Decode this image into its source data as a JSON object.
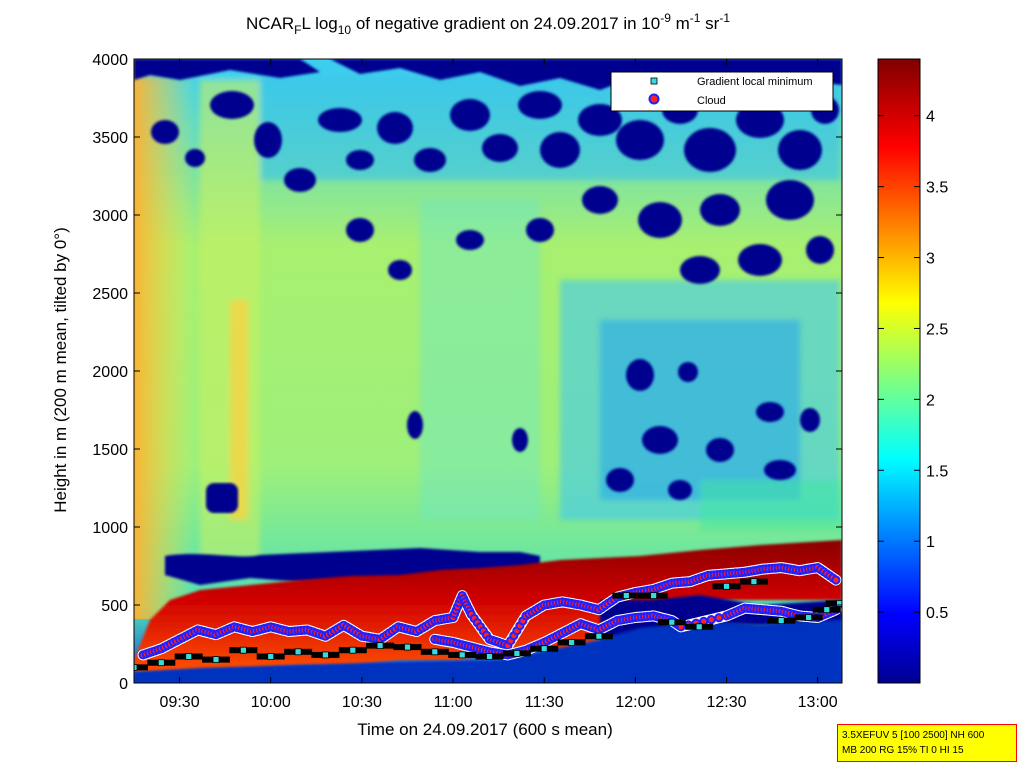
{
  "chart_data": {
    "type": "heatmap",
    "title": {
      "prefix": "NCAR",
      "prefix_sub": "F",
      "mid": "L log",
      "mid_sub": "10",
      "rest": " of negative gradient on 24.09.2017 in 10",
      "exp1": "-9",
      "unit_m": " m",
      "exp2": "-1",
      "unit_sr": " sr",
      "exp3": "-1"
    },
    "xlabel": "Time on 24.09.2017 (600 s mean)",
    "ylabel": "Height in m (200 m mean, tilted by 0°)",
    "x_range": [
      "09:15",
      "13:08"
    ],
    "x_ticks": [
      "09:30",
      "10:00",
      "10:30",
      "11:00",
      "11:30",
      "12:00",
      "12:30",
      "13:00"
    ],
    "y_range": [
      0,
      4000
    ],
    "y_ticks": [
      0,
      500,
      1000,
      1500,
      2000,
      2500,
      3000,
      3500,
      4000
    ],
    "colorbar": {
      "range": [
        0,
        4.4
      ],
      "ticks": [
        "0.5",
        "1",
        "1.5",
        "2",
        "2.5",
        "3",
        "3.5",
        "4"
      ],
      "colormap": "jet"
    },
    "legend": {
      "position": "top-right",
      "entries": [
        {
          "label": "Gradient local minimum",
          "marker": "square",
          "color": "#33dddd"
        },
        {
          "label": "Cloud",
          "marker": "circle",
          "color": "#ff2020",
          "edge": "#2020ff"
        }
      ]
    },
    "cloud_series": [
      [
        9.3,
        180
      ],
      [
        9.4,
        220
      ],
      [
        9.5,
        280
      ],
      [
        9.6,
        340
      ],
      [
        9.7,
        310
      ],
      [
        9.8,
        360
      ],
      [
        9.9,
        330
      ],
      [
        10.0,
        360
      ],
      [
        10.1,
        330
      ],
      [
        10.2,
        340
      ],
      [
        10.3,
        300
      ],
      [
        10.4,
        370
      ],
      [
        10.5,
        300
      ],
      [
        10.6,
        280
      ],
      [
        10.7,
        360
      ],
      [
        10.8,
        330
      ],
      [
        10.9,
        400
      ],
      [
        11.0,
        420
      ],
      [
        11.05,
        560
      ],
      [
        11.1,
        440
      ],
      [
        11.2,
        280
      ],
      [
        11.3,
        240
      ],
      [
        11.4,
        430
      ],
      [
        11.5,
        500
      ],
      [
        11.6,
        520
      ],
      [
        11.7,
        500
      ],
      [
        11.8,
        470
      ],
      [
        11.9,
        550
      ],
      [
        12.0,
        580
      ],
      [
        12.1,
        600
      ],
      [
        12.2,
        640
      ],
      [
        12.3,
        650
      ],
      [
        12.4,
        690
      ],
      [
        12.5,
        700
      ],
      [
        12.6,
        710
      ],
      [
        12.7,
        730
      ],
      [
        12.8,
        740
      ],
      [
        12.9,
        720
      ],
      [
        13.0,
        740
      ],
      [
        13.1,
        660
      ]
    ],
    "cloud_series_low": [
      [
        10.9,
        280
      ],
      [
        11.0,
        260
      ],
      [
        11.1,
        230
      ],
      [
        11.2,
        200
      ],
      [
        11.3,
        180
      ],
      [
        11.4,
        210
      ],
      [
        11.5,
        260
      ],
      [
        11.6,
        320
      ],
      [
        11.7,
        380
      ],
      [
        11.8,
        340
      ],
      [
        11.9,
        400
      ],
      [
        12.0,
        420
      ],
      [
        12.1,
        430
      ],
      [
        12.2,
        400
      ],
      [
        12.25,
        360
      ],
      [
        12.5,
        430
      ],
      [
        12.6,
        480
      ],
      [
        12.7,
        470
      ],
      [
        12.8,
        460
      ],
      [
        12.9,
        430
      ],
      [
        13.0,
        420
      ],
      [
        13.1,
        470
      ]
    ],
    "gradient_minimum_series": [
      [
        9.25,
        100
      ],
      [
        9.4,
        130
      ],
      [
        9.55,
        170
      ],
      [
        9.7,
        150
      ],
      [
        9.85,
        210
      ],
      [
        10.0,
        170
      ],
      [
        10.15,
        200
      ],
      [
        10.3,
        180
      ],
      [
        10.45,
        210
      ],
      [
        10.6,
        240
      ],
      [
        10.75,
        230
      ],
      [
        10.9,
        200
      ],
      [
        11.05,
        180
      ],
      [
        11.2,
        170
      ],
      [
        11.35,
        190
      ],
      [
        11.5,
        220
      ],
      [
        11.65,
        260
      ],
      [
        11.8,
        300
      ],
      [
        11.95,
        560
      ],
      [
        12.1,
        560
      ],
      [
        12.2,
        390
      ],
      [
        12.35,
        360
      ],
      [
        12.5,
        620
      ],
      [
        12.65,
        650
      ],
      [
        12.8,
        400
      ],
      [
        12.95,
        420
      ],
      [
        13.05,
        470
      ],
      [
        13.12,
        510
      ]
    ]
  },
  "info_box": {
    "line1": "3.5XEFUV 5 [100 2500] NH 600",
    "line2": "MB 200 RG 15% TI 0 HI 15"
  }
}
